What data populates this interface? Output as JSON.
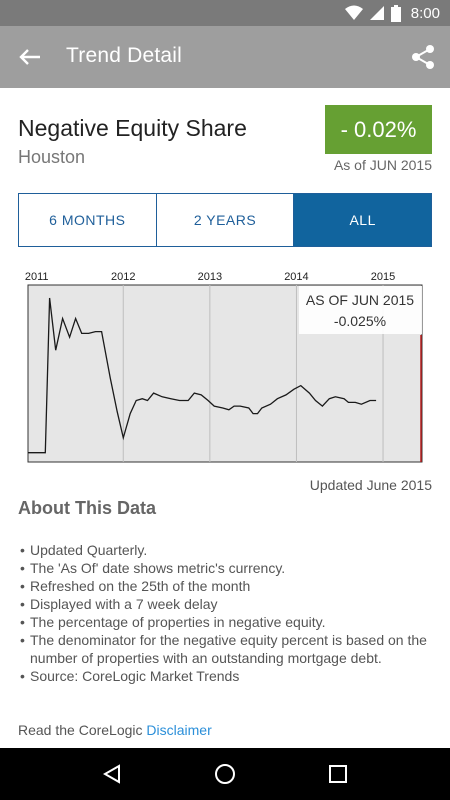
{
  "status_bar": {
    "time": "8:00"
  },
  "app_bar": {
    "title": "Trend Detail"
  },
  "metric": {
    "title": "Negative Equity Share",
    "city": "Houston",
    "value": "- 0.02%",
    "as_of": "As of JUN 2015"
  },
  "range_tabs": [
    {
      "label": "6 MONTHS",
      "active": false
    },
    {
      "label": "2 YEARS",
      "active": false
    },
    {
      "label": "ALL",
      "active": true
    }
  ],
  "chart_data": {
    "type": "line",
    "x_tick_labels": [
      "2011",
      "2012",
      "2013",
      "2014",
      "2015"
    ],
    "tooltip": {
      "label": "AS OF JUN 2015",
      "value": "-0.025%"
    },
    "grid": true,
    "series": [
      {
        "values": [
          [
            2010.9,
            0.05
          ],
          [
            2011.0,
            0.05
          ],
          [
            2011.1,
            0.05
          ],
          [
            2011.15,
            0.88
          ],
          [
            2011.22,
            0.6
          ],
          [
            2011.3,
            0.77
          ],
          [
            2011.38,
            0.67
          ],
          [
            2011.45,
            0.77
          ],
          [
            2011.52,
            0.69
          ],
          [
            2011.6,
            0.69
          ],
          [
            2011.68,
            0.7
          ],
          [
            2011.75,
            0.7
          ],
          [
            2011.85,
            0.45
          ],
          [
            2011.93,
            0.27
          ],
          [
            2012.0,
            0.13
          ],
          [
            2012.08,
            0.26
          ],
          [
            2012.15,
            0.33
          ],
          [
            2012.22,
            0.34
          ],
          [
            2012.28,
            0.33
          ],
          [
            2012.35,
            0.37
          ],
          [
            2012.45,
            0.35
          ],
          [
            2012.55,
            0.34
          ],
          [
            2012.65,
            0.33
          ],
          [
            2012.75,
            0.33
          ],
          [
            2012.82,
            0.37
          ],
          [
            2012.9,
            0.36
          ],
          [
            2012.98,
            0.33
          ],
          [
            2013.05,
            0.3
          ],
          [
            2013.15,
            0.29
          ],
          [
            2013.22,
            0.28
          ],
          [
            2013.28,
            0.3
          ],
          [
            2013.35,
            0.3
          ],
          [
            2013.45,
            0.29
          ],
          [
            2013.5,
            0.26
          ],
          [
            2013.55,
            0.26
          ],
          [
            2013.6,
            0.29
          ],
          [
            2013.7,
            0.31
          ],
          [
            2013.78,
            0.34
          ],
          [
            2013.88,
            0.36
          ],
          [
            2013.97,
            0.39
          ],
          [
            2014.05,
            0.41
          ],
          [
            2014.15,
            0.37
          ],
          [
            2014.22,
            0.33
          ],
          [
            2014.3,
            0.3
          ],
          [
            2014.38,
            0.34
          ],
          [
            2014.45,
            0.35
          ],
          [
            2014.55,
            0.34
          ],
          [
            2014.6,
            0.32
          ],
          [
            2014.68,
            0.32
          ],
          [
            2014.75,
            0.31
          ],
          [
            2014.85,
            0.33
          ],
          [
            2014.92,
            0.33
          ]
        ]
      }
    ]
  },
  "updated": "Updated June 2015",
  "about": {
    "title": "About This Data",
    "items": [
      "Updated Quarterly.",
      "The 'As Of' date shows metric's currency.",
      "Refreshed on the 25th of the month",
      "Displayed with a 7 week delay",
      "The percentage of properties in negative equity.",
      "The denominator for the negative equity percent is based on the number of properties with an outstanding mortgage debt.",
      "Source: CoreLogic Market Trends"
    ]
  },
  "disclaimer": {
    "prefix": "Read the CoreLogic",
    "link": "Disclaimer"
  },
  "colors": {
    "accent_green": "#66a033",
    "tab_blue": "#11649e",
    "link_blue": "#2b8fd9"
  }
}
